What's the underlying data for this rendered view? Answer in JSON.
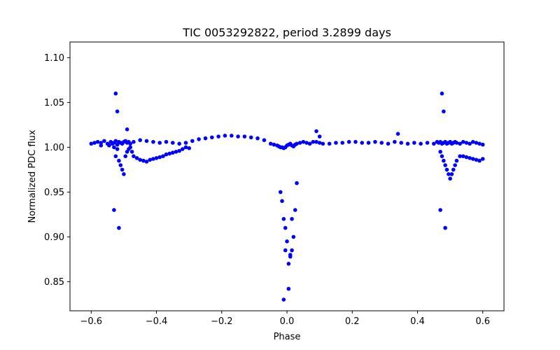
{
  "chart_data": {
    "type": "scatter",
    "title": "TIC 0053292822, period 3.2899 days",
    "xlabel": "Phase",
    "ylabel": "Normalized PDC flux",
    "xlim": [
      -0.665,
      0.665
    ],
    "ylim": [
      0.8175,
      1.1175
    ],
    "xticks": [
      -0.6,
      -0.4,
      -0.2,
      0.0,
      0.2,
      0.4,
      0.6
    ],
    "xtick_labels": [
      "−0.6",
      "−0.4",
      "−0.2",
      "0.0",
      "0.2",
      "0.4",
      "0.6"
    ],
    "yticks": [
      0.85,
      0.9,
      0.95,
      1.0,
      1.05,
      1.1
    ],
    "ytick_labels": [
      "0.85",
      "0.90",
      "0.95",
      "1.00",
      "1.05",
      "1.10"
    ],
    "marker_color": "#0000ff",
    "series": [
      {
        "name": "PDC flux",
        "x": [
          -0.6,
          -0.59,
          -0.58,
          -0.57,
          -0.56,
          -0.55,
          -0.545,
          -0.54,
          -0.535,
          -0.53,
          -0.525,
          -0.52,
          -0.515,
          -0.51,
          -0.505,
          -0.5,
          -0.495,
          -0.49,
          -0.485,
          -0.48,
          -0.47,
          -0.45,
          -0.43,
          -0.41,
          -0.39,
          -0.37,
          -0.35,
          -0.33,
          -0.31,
          -0.29,
          -0.27,
          -0.25,
          -0.23,
          -0.21,
          -0.19,
          -0.17,
          -0.15,
          -0.13,
          -0.11,
          -0.09,
          -0.07,
          -0.05,
          -0.04,
          -0.03,
          -0.025,
          -0.02,
          -0.015,
          -0.01,
          -0.005,
          0.0,
          0.005,
          0.01,
          0.015,
          0.02,
          0.025,
          0.03,
          0.04,
          0.05,
          0.06,
          0.07,
          0.08,
          0.09,
          0.1,
          0.11,
          0.13,
          0.15,
          0.17,
          0.19,
          0.21,
          0.23,
          0.25,
          0.27,
          0.29,
          0.31,
          0.33,
          0.35,
          0.37,
          0.39,
          0.41,
          0.43,
          0.45,
          0.46,
          0.465,
          0.47,
          0.475,
          0.48,
          0.485,
          0.49,
          0.495,
          0.5,
          0.505,
          0.51,
          0.515,
          0.52,
          0.53,
          0.54,
          0.55,
          0.56,
          0.57,
          0.58,
          0.59,
          0.6,
          -0.53,
          -0.52,
          -0.525,
          -0.515,
          -0.51,
          -0.505,
          -0.5,
          -0.495,
          -0.49,
          -0.485,
          -0.48,
          -0.475,
          -0.47,
          -0.46,
          -0.45,
          -0.44,
          -0.43,
          -0.42,
          -0.41,
          -0.4,
          -0.39,
          -0.38,
          -0.37,
          -0.36,
          -0.35,
          -0.34,
          -0.33,
          -0.32,
          -0.31,
          -0.3,
          0.47,
          0.475,
          0.48,
          0.485,
          0.49,
          0.495,
          0.5,
          0.505,
          0.51,
          0.515,
          0.52,
          0.53,
          0.54,
          0.55,
          0.56,
          0.57,
          0.58,
          0.59,
          0.6,
          -0.02,
          -0.015,
          -0.01,
          -0.005,
          0.0,
          0.005,
          0.01,
          0.015,
          0.02,
          0.025,
          0.03,
          -0.525,
          -0.52,
          -0.53,
          -0.515,
          0.475,
          0.48,
          0.47,
          0.485,
          -0.01,
          0.005,
          0.01,
          0.015,
          -0.005,
          0.09,
          0.1,
          0.34,
          -0.57,
          -0.49
        ],
        "y": [
          1.004,
          1.005,
          1.006,
          1.005,
          1.007,
          1.004,
          1.002,
          1.006,
          1.004,
          1.005,
          1.007,
          1.003,
          1.006,
          1.005,
          1.004,
          1.006,
          1.007,
          1.005,
          1.006,
          1.004,
          1.006,
          1.008,
          1.007,
          1.006,
          1.005,
          1.006,
          1.005,
          1.004,
          1.005,
          1.007,
          1.009,
          1.01,
          1.011,
          1.012,
          1.013,
          1.013,
          1.012,
          1.012,
          1.011,
          1.01,
          1.008,
          1.004,
          1.003,
          1.002,
          1.001,
          1.0,
          1.0,
          0.999,
          1.0,
          1.002,
          1.003,
          1.004,
          1.002,
          1.001,
          1.003,
          1.004,
          1.005,
          1.006,
          1.005,
          1.004,
          1.006,
          1.006,
          1.005,
          1.004,
          1.004,
          1.005,
          1.005,
          1.006,
          1.006,
          1.005,
          1.005,
          1.006,
          1.005,
          1.004,
          1.006,
          1.005,
          1.004,
          1.005,
          1.004,
          1.005,
          1.004,
          1.006,
          1.005,
          1.006,
          1.004,
          1.005,
          1.006,
          1.004,
          1.005,
          1.006,
          1.004,
          1.005,
          1.006,
          1.005,
          1.004,
          1.006,
          1.005,
          1.004,
          1.006,
          1.005,
          1.004,
          1.003,
          1.0,
          0.998,
          0.99,
          0.985,
          0.98,
          0.975,
          0.97,
          0.99,
          0.995,
          0.998,
          1.0,
          0.995,
          0.99,
          0.988,
          0.986,
          0.985,
          0.984,
          0.986,
          0.987,
          0.988,
          0.989,
          0.99,
          0.992,
          0.993,
          0.994,
          0.995,
          0.996,
          0.998,
          1.0,
          0.999,
          0.995,
          0.99,
          0.985,
          0.98,
          0.975,
          0.97,
          0.965,
          0.97,
          0.975,
          0.98,
          0.985,
          0.99,
          0.99,
          0.989,
          0.988,
          0.987,
          0.986,
          0.985,
          0.987,
          0.95,
          0.94,
          0.92,
          0.91,
          0.895,
          0.87,
          0.88,
          0.885,
          0.9,
          0.93,
          0.96,
          1.06,
          1.04,
          0.93,
          0.91,
          1.06,
          1.04,
          0.93,
          0.91,
          0.83,
          0.842,
          0.878,
          0.92,
          0.885,
          1.018,
          1.012,
          1.015,
          1.002,
          1.02
        ]
      }
    ]
  }
}
